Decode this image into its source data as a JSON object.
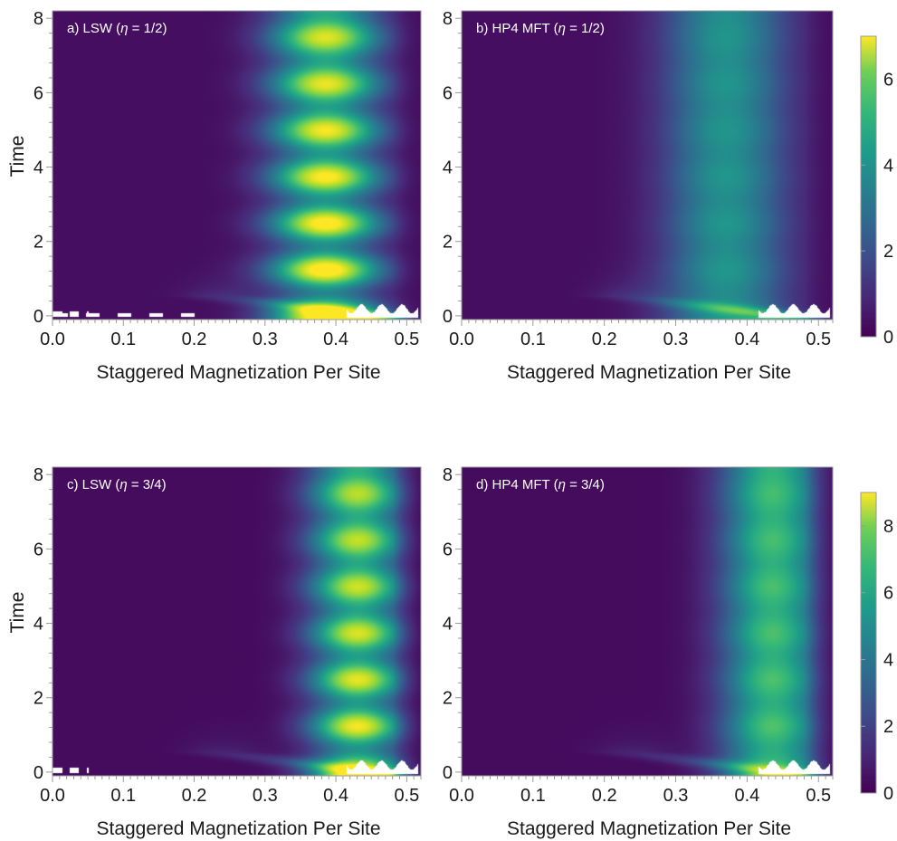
{
  "chart_data": [
    {
      "type": "heatmap",
      "title": "a) LSW (",
      "title_symbol": "η",
      "title_tail": " = 1/2)",
      "xlabel": "Staggered Magnetization Per Site",
      "ylabel": "Time",
      "xlim": [
        0.0,
        0.52
      ],
      "ylim": [
        -0.1,
        8.2
      ],
      "x_ticks": [
        "0.0",
        "0.1",
        "0.2",
        "0.3",
        "0.4",
        "0.5"
      ],
      "y_ticks": [
        "0",
        "2",
        "4",
        "6",
        "8"
      ],
      "colorscale": "viridis",
      "color_range": [
        0,
        7
      ],
      "ridge_center": 0.385,
      "ridge_width": 0.075,
      "peak_value": 5.2,
      "oscillation": 0.45
    },
    {
      "type": "heatmap",
      "title": "b) HP4 MFT (",
      "title_symbol": "η",
      "title_tail": " = 1/2)",
      "xlabel": "Staggered Magnetization Per Site",
      "ylabel": "",
      "xlim": [
        0.0,
        0.52
      ],
      "ylim": [
        -0.1,
        8.2
      ],
      "x_ticks": [
        "0.0",
        "0.1",
        "0.2",
        "0.3",
        "0.4",
        "0.5"
      ],
      "y_ticks": [
        "0",
        "2",
        "4",
        "6",
        "8"
      ],
      "colorscale": "viridis",
      "color_range": [
        0,
        7
      ],
      "ridge_center": 0.37,
      "ridge_width": 0.085,
      "peak_value": 3.3,
      "oscillation": 0.05
    },
    {
      "type": "heatmap",
      "title": "c) LSW (",
      "title_symbol": "η",
      "title_tail": " = 3/4)",
      "xlabel": "Staggered Magnetization Per Site",
      "ylabel": "Time",
      "xlim": [
        0.0,
        0.52
      ],
      "ylim": [
        -0.1,
        8.2
      ],
      "x_ticks": [
        "0.0",
        "0.1",
        "0.2",
        "0.3",
        "0.4",
        "0.5"
      ],
      "y_ticks": [
        "0",
        "2",
        "4",
        "6",
        "8"
      ],
      "colorscale": "viridis",
      "color_range": [
        0,
        9
      ],
      "ridge_center": 0.43,
      "ridge_width": 0.065,
      "peak_value": 6.6,
      "oscillation": 0.35
    },
    {
      "type": "heatmap",
      "title": "d) HP4 MFT (",
      "title_symbol": "η",
      "title_tail": " = 3/4)",
      "xlabel": "Staggered Magnetization Per Site",
      "ylabel": "",
      "xlim": [
        0.0,
        0.52
      ],
      "ylim": [
        -0.1,
        8.2
      ],
      "x_ticks": [
        "0.0",
        "0.1",
        "0.2",
        "0.3",
        "0.4",
        "0.5"
      ],
      "y_ticks": [
        "0",
        "2",
        "4",
        "6",
        "8"
      ],
      "colorscale": "viridis",
      "color_range": [
        0,
        9
      ],
      "ridge_center": 0.435,
      "ridge_width": 0.07,
      "peak_value": 5.8,
      "oscillation": 0.08
    }
  ],
  "colorbars": [
    {
      "range": [
        0,
        7
      ],
      "ticks": [
        "0",
        "2",
        "4",
        "6"
      ],
      "tick_values": [
        0,
        2,
        4,
        6
      ]
    },
    {
      "range": [
        0,
        9
      ],
      "ticks": [
        "0",
        "2",
        "4",
        "6",
        "8"
      ],
      "tick_values": [
        0,
        2,
        4,
        6,
        8
      ]
    }
  ],
  "colors": {
    "viridis_low": "#440154",
    "viridis_mid": "#21918c",
    "viridis_high": "#fde725",
    "panel_bg": "#2c1a66",
    "text_on_plot": "#ffffff"
  }
}
